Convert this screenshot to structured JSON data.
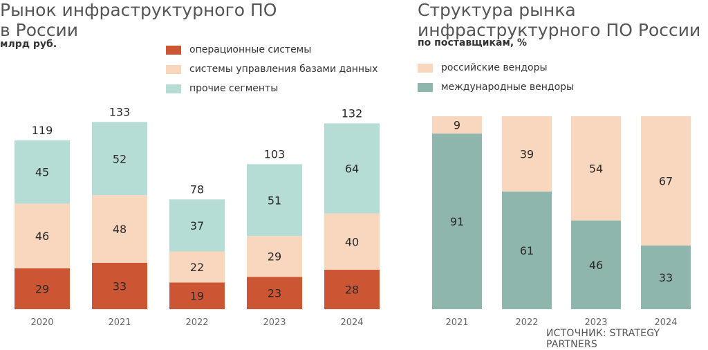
{
  "colors": {
    "os": "#cc5634",
    "dbms": "#f8d7be",
    "other": "#b5dcd5",
    "ru": "#f8d7be",
    "intl": "#8fb6ad"
  },
  "left": {
    "title_line1": "Рынок инфраструктурного ПО",
    "title_line2": "в России",
    "subtitle": "млрд руб."
  },
  "right": {
    "title_line1": "Структура рынка",
    "title_line2": "инфраструктурного ПО России",
    "subtitle": "по поставщикам, %"
  },
  "source": "ИСТОЧНИК: STRATEGY PARTNERS",
  "chart_data": [
    {
      "type": "bar",
      "stacked": true,
      "title": "Рынок инфраструктурного ПО в России",
      "ylabel": "млрд руб.",
      "categories": [
        "2020",
        "2021",
        "2022",
        "2023",
        "2024"
      ],
      "series": [
        {
          "name": "операционные системы",
          "color_key": "os",
          "values": [
            29,
            33,
            19,
            23,
            28
          ]
        },
        {
          "name": "системы управления базами данных",
          "color_key": "dbms",
          "values": [
            46,
            48,
            22,
            29,
            40
          ]
        },
        {
          "name": "прочие сегменты",
          "color_key": "other",
          "values": [
            45,
            52,
            37,
            51,
            64
          ]
        }
      ],
      "totals": [
        119,
        133,
        78,
        103,
        132
      ],
      "legend": "top"
    },
    {
      "type": "bar",
      "stacked": true,
      "title": "Структура рынка инфраструктурного ПО России",
      "ylabel": "по поставщикам, %",
      "categories": [
        "2021",
        "2022",
        "2023",
        "2024"
      ],
      "series": [
        {
          "name": "международные вендоры",
          "color_key": "intl",
          "values": [
            91,
            61,
            46,
            33
          ]
        },
        {
          "name": "российские вендоры",
          "color_key": "ru",
          "values": [
            9,
            39,
            54,
            67
          ]
        }
      ],
      "ylim": [
        0,
        100
      ],
      "legend": "top"
    }
  ]
}
